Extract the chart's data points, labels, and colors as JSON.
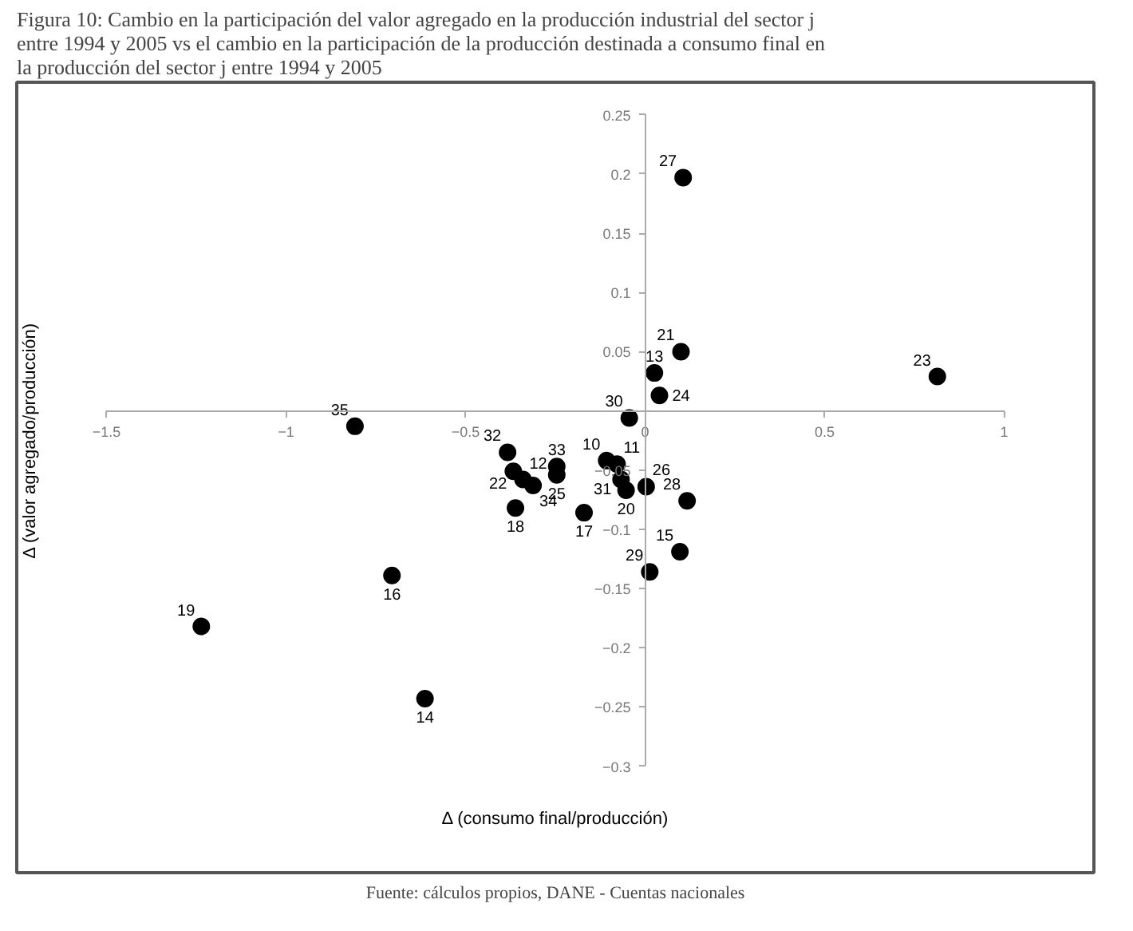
{
  "chart_data": {
    "type": "scatter",
    "title": "Figura 10: Cambio en la participación del valor agregado en la producción industrial del sector j entre 1994 y 2005 vs el cambio en la participación de la producción destinada a consumo final en la producción del sector j entre 1994 y 2005",
    "xlabel": "Δ (consumo final/producción)",
    "ylabel": "Δ (valor agregado/producción)",
    "x": [
      0.106,
      0.1,
      0.026,
      0.04,
      0.814,
      -0.044,
      -0.808,
      -0.383,
      -0.34,
      -0.367,
      -0.312,
      -0.361,
      -0.246,
      -0.246,
      -0.17,
      -0.107,
      -0.078,
      -0.067,
      -0.053,
      0.003,
      0.117,
      0.097,
      0.013,
      -0.705,
      -1.236,
      -0.613
    ],
    "values": [
      0.197,
      0.05,
      0.032,
      0.013,
      0.029,
      -0.006,
      -0.013,
      -0.035,
      -0.058,
      -0.051,
      -0.063,
      -0.082,
      -0.047,
      -0.054,
      -0.086,
      -0.042,
      -0.045,
      -0.058,
      -0.067,
      -0.064,
      -0.076,
      -0.119,
      -0.136,
      -0.139,
      -0.182,
      -0.243
    ],
    "color": "#000000",
    "marker": "circle",
    "grid": false,
    "xlim": [
      -1.5,
      1
    ],
    "ylim": [
      -0.3,
      0.25
    ],
    "xticks": [
      -1.5,
      -1,
      -0.5,
      {
        "value": 0,
        "label": "0"
      },
      0.5,
      1
    ],
    "yticks": [
      -0.3,
      -0.25,
      -0.2,
      -0.15,
      -0.1,
      -0.05,
      0.05,
      0.1,
      0.15,
      0.2,
      0.25
    ],
    "annotations": [
      {
        "text": "27",
        "x": 0.106,
        "y": 0.197
      },
      {
        "text": "21",
        "x": 0.1,
        "y": 0.05
      },
      {
        "text": "13",
        "x": 0.026,
        "y": 0.032
      },
      {
        "text": "24",
        "x": 0.04,
        "y": 0.013
      },
      {
        "text": "23",
        "x": 0.814,
        "y": 0.029
      },
      {
        "text": "30",
        "x": -0.044,
        "y": -0.006
      },
      {
        "text": "35",
        "x": -0.808,
        "y": -0.013
      },
      {
        "text": "32",
        "x": -0.383,
        "y": -0.035
      },
      {
        "text": "12",
        "x": -0.34,
        "y": -0.058
      },
      {
        "text": "22",
        "x": -0.367,
        "y": -0.051
      },
      {
        "text": "34",
        "x": -0.312,
        "y": -0.063
      },
      {
        "text": "18",
        "x": -0.361,
        "y": -0.082
      },
      {
        "text": "33",
        "x": -0.246,
        "y": -0.047
      },
      {
        "text": "25",
        "x": -0.246,
        "y": -0.054
      },
      {
        "text": "17",
        "x": -0.17,
        "y": -0.086
      },
      {
        "text": "10",
        "x": -0.107,
        "y": -0.042
      },
      {
        "text": "11",
        "x": -0.078,
        "y": -0.045
      },
      {
        "text": "31",
        "x": -0.067,
        "y": -0.058
      },
      {
        "text": "20",
        "x": -0.053,
        "y": -0.067
      },
      {
        "text": "26",
        "x": 0.003,
        "y": -0.064
      },
      {
        "text": "28",
        "x": 0.117,
        "y": -0.076
      },
      {
        "text": "15",
        "x": 0.097,
        "y": -0.119
      },
      {
        "text": "29",
        "x": 0.013,
        "y": -0.136
      },
      {
        "text": "16",
        "x": -0.705,
        "y": -0.139
      },
      {
        "text": "19",
        "x": -1.236,
        "y": -0.182
      },
      {
        "text": "14",
        "x": -0.613,
        "y": -0.243
      },
      "Fuente: cálculos propios, DANE - Cuentas nacionales"
    ]
  }
}
